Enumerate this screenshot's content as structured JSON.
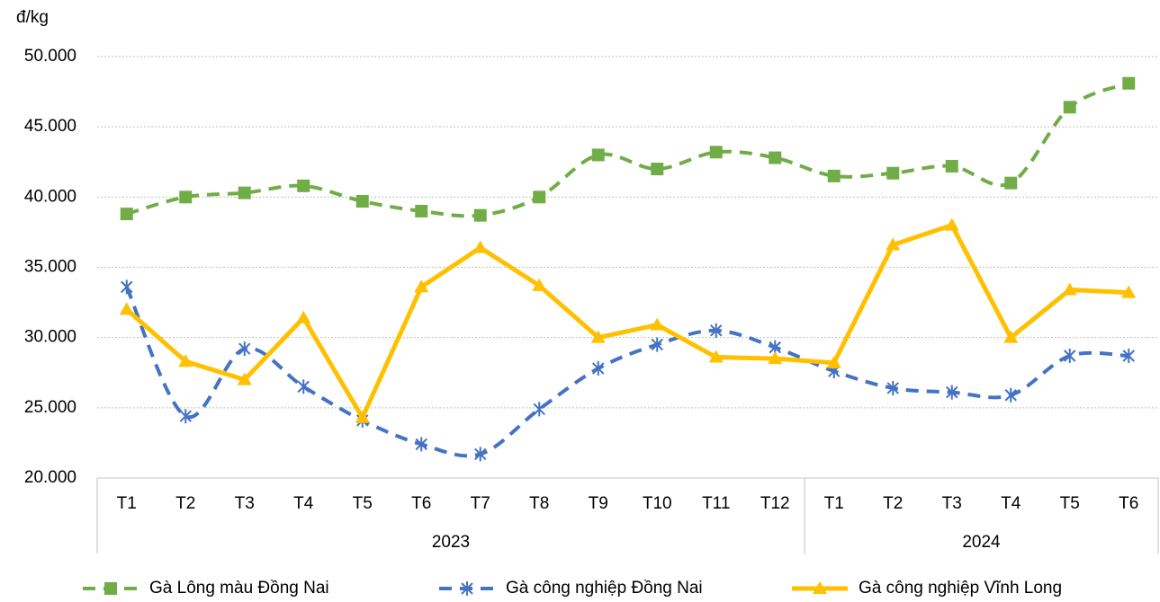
{
  "chart_data": {
    "type": "line",
    "y_label": "đ/kg",
    "categories": [
      "T1",
      "T2",
      "T3",
      "T4",
      "T5",
      "T6",
      "T7",
      "T8",
      "T9",
      "T10",
      "T11",
      "T12",
      "T1",
      "T2",
      "T3",
      "T4",
      "T5",
      "T6"
    ],
    "category_groups": [
      {
        "label": "2023",
        "size": 12
      },
      {
        "label": "2024",
        "size": 6
      }
    ],
    "ylim": [
      20000,
      50000
    ],
    "yticks": [
      {
        "value": 20000,
        "label": "20.000"
      },
      {
        "value": 25000,
        "label": "25.000"
      },
      {
        "value": 30000,
        "label": "30.000"
      },
      {
        "value": 35000,
        "label": "35.000"
      },
      {
        "value": 40000,
        "label": "40.000"
      },
      {
        "value": 45000,
        "label": "45.000"
      },
      {
        "value": 50000,
        "label": "50.000"
      }
    ],
    "grid": true,
    "legend": "bottom",
    "series": [
      {
        "name": "Gà Lông màu Đồng Nai",
        "color": "#70ad47",
        "marker": "square",
        "dashed": true,
        "smooth": true,
        "values": [
          38800,
          40000,
          40300,
          40800,
          39700,
          39000,
          38700,
          40000,
          43000,
          42000,
          43200,
          42800,
          41500,
          41700,
          42200,
          41000,
          46400,
          48100
        ]
      },
      {
        "name": "Gà công nghiệp Đồng Nai",
        "color": "#4472c4",
        "marker": "star",
        "dashed": true,
        "smooth": true,
        "values": [
          33600,
          24400,
          29200,
          26500,
          24100,
          22400,
          21700,
          24900,
          27800,
          29500,
          30500,
          29300,
          27600,
          26400,
          26100,
          25900,
          28700,
          28700
        ]
      },
      {
        "name": "Gà công nghiệp Vĩnh Long",
        "color": "#ffc000",
        "marker": "triangle",
        "dashed": false,
        "smooth": false,
        "values": [
          32000,
          28300,
          27000,
          31400,
          24300,
          33600,
          36400,
          33700,
          30000,
          30900,
          28600,
          28500,
          28200,
          36600,
          38000,
          30000,
          33400,
          33200
        ]
      }
    ]
  }
}
